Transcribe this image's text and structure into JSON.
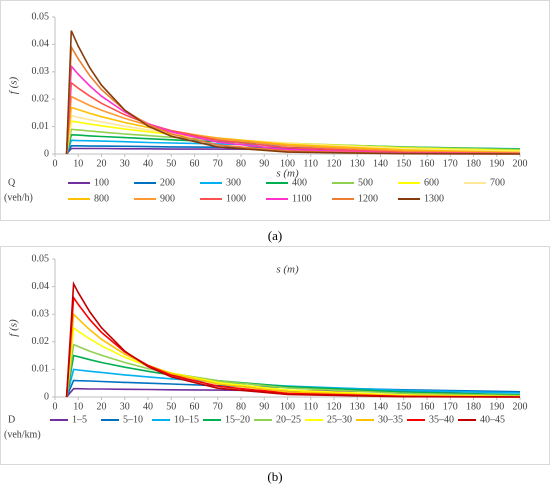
{
  "chart_data": [
    {
      "type": "line",
      "xlabel": "s (m)",
      "ylabel": "f (s)",
      "legend_title": "Q",
      "legend_subtitle": "(veh/h)",
      "caption": "(a)",
      "xlim": [
        0,
        200
      ],
      "xticks": [
        0,
        10,
        20,
        30,
        40,
        50,
        60,
        70,
        80,
        90,
        100,
        110,
        120,
        130,
        140,
        150,
        160,
        170,
        180,
        190,
        200
      ],
      "ylim": [
        0,
        0.05
      ],
      "yticks": [
        0,
        0.01,
        0.02,
        0.03,
        0.04,
        0.05
      ],
      "x": [
        5,
        7,
        10,
        15,
        20,
        30,
        40,
        50,
        70,
        100,
        150,
        200
      ],
      "series": [
        {
          "name": "100",
          "color": "#7030a0",
          "values": [
            0,
            0.002,
            0.002,
            0.002,
            0.002,
            0.0019,
            0.0019,
            0.0018,
            0.0018,
            0.0017,
            0.0016,
            0.0015
          ]
        },
        {
          "name": "200",
          "color": "#0070c0",
          "values": [
            0,
            0.003,
            0.003,
            0.0029,
            0.0029,
            0.0028,
            0.0027,
            0.0026,
            0.0025,
            0.0023,
            0.002,
            0.0017
          ]
        },
        {
          "name": "300",
          "color": "#00b0f0",
          "values": [
            0,
            0.005,
            0.0049,
            0.0048,
            0.0047,
            0.0045,
            0.0042,
            0.004,
            0.0037,
            0.0031,
            0.0024,
            0.0019
          ]
        },
        {
          "name": "400",
          "color": "#00b050",
          "values": [
            0,
            0.007,
            0.0069,
            0.0066,
            0.0064,
            0.006,
            0.0056,
            0.0052,
            0.0045,
            0.0037,
            0.0026,
            0.0018
          ]
        },
        {
          "name": "500",
          "color": "#92d050",
          "values": [
            0,
            0.009,
            0.0088,
            0.0084,
            0.008,
            0.0073,
            0.0067,
            0.0061,
            0.0051,
            0.0039,
            0.0025,
            0.0016
          ]
        },
        {
          "name": "600",
          "color": "#ffff00",
          "values": [
            0,
            0.012,
            0.0116,
            0.0109,
            0.0103,
            0.0091,
            0.0081,
            0.0072,
            0.0056,
            0.0039,
            0.0022,
            0.0012
          ]
        },
        {
          "name": "700",
          "color": "#ffe699",
          "values": [
            0,
            0.014,
            0.0134,
            0.0125,
            0.0117,
            0.0101,
            0.0088,
            0.0077,
            0.0058,
            0.0038,
            0.0019,
            0.0009
          ]
        },
        {
          "name": "800",
          "color": "#ffc000",
          "values": [
            0,
            0.017,
            0.0162,
            0.0148,
            0.0136,
            0.0115,
            0.0097,
            0.0082,
            0.0058,
            0.0035,
            0.0015,
            0.0006
          ]
        },
        {
          "name": "900",
          "color": "#ff9933",
          "values": [
            0,
            0.021,
            0.0197,
            0.0177,
            0.016,
            0.013,
            0.0105,
            0.0085,
            0.0056,
            0.003,
            0.001,
            0.0004
          ]
        },
        {
          "name": "1000",
          "color": "#ff5050",
          "values": [
            0,
            0.026,
            0.024,
            0.0211,
            0.0185,
            0.0143,
            0.011,
            0.0085,
            0.005,
            0.0023,
            0.0006,
            0.0002
          ]
        },
        {
          "name": "1100",
          "color": "#ff33cc",
          "values": [
            0,
            0.032,
            0.0291,
            0.0248,
            0.0211,
            0.0153,
            0.0111,
            0.0081,
            0.0043,
            0.0016,
            0.0003,
            0.0001
          ]
        },
        {
          "name": "1200",
          "color": "#ed7d31",
          "values": [
            0,
            0.039,
            0.0347,
            0.0285,
            0.0235,
            0.0159,
            0.0108,
            0.0073,
            0.0033,
            0.0011,
            0.0001,
            0
          ]
        },
        {
          "name": "1300",
          "color": "#843c0c",
          "values": [
            0,
            0.045,
            0.0393,
            0.0314,
            0.0251,
            0.016,
            0.0102,
            0.0065,
            0.0026,
            0.0007,
            0.0001,
            0
          ]
        }
      ]
    },
    {
      "type": "line",
      "xlabel": "s (m)",
      "ylabel": "f (s)",
      "legend_title": "D",
      "legend_subtitle": "(veh/km)",
      "caption": "(b)",
      "xlim": [
        0,
        200
      ],
      "xticks": [
        0,
        10,
        20,
        30,
        40,
        50,
        60,
        70,
        80,
        90,
        100,
        110,
        120,
        130,
        140,
        150,
        160,
        170,
        180,
        190,
        200
      ],
      "ylim": [
        0,
        0.05
      ],
      "yticks": [
        0,
        0.01,
        0.02,
        0.03,
        0.04,
        0.05
      ],
      "x": [
        5,
        8,
        10,
        15,
        20,
        30,
        40,
        50,
        70,
        100,
        150,
        200
      ],
      "series": [
        {
          "name": "1–5",
          "color": "#7030a0",
          "values": [
            0,
            0.003,
            0.003,
            0.0029,
            0.0029,
            0.0028,
            0.0027,
            0.0026,
            0.0025,
            0.0023,
            0.002,
            0.0017
          ]
        },
        {
          "name": "5–10",
          "color": "#0070c0",
          "values": [
            0,
            0.006,
            0.0059,
            0.0058,
            0.0056,
            0.0053,
            0.005,
            0.0047,
            0.0041,
            0.0035,
            0.0026,
            0.0019
          ]
        },
        {
          "name": "10–15",
          "color": "#00b0f0",
          "values": [
            0,
            0.01,
            0.0098,
            0.0093,
            0.0089,
            0.008,
            0.0073,
            0.0066,
            0.0054,
            0.004,
            0.0024,
            0.0015
          ]
        },
        {
          "name": "15–20",
          "color": "#00b050",
          "values": [
            0,
            0.015,
            0.0146,
            0.0135,
            0.0125,
            0.0108,
            0.0093,
            0.008,
            0.0059,
            0.0038,
            0.0018,
            0.0008
          ]
        },
        {
          "name": "20–25",
          "color": "#92d050",
          "values": [
            0,
            0.019,
            0.0183,
            0.0166,
            0.0151,
            0.0125,
            0.0103,
            0.0086,
            0.0059,
            0.0033,
            0.0013,
            0.0005
          ]
        },
        {
          "name": "25–30",
          "color": "#ffff00",
          "values": [
            0,
            0.025,
            0.0238,
            0.021,
            0.0185,
            0.0144,
            0.0112,
            0.0087,
            0.0053,
            0.0025,
            0.0007,
            0.0002
          ]
        },
        {
          "name": "30–35",
          "color": "#ffc000",
          "values": [
            0,
            0.03,
            0.0283,
            0.0243,
            0.0209,
            0.0155,
            0.0115,
            0.0085,
            0.0047,
            0.0019,
            0.0004,
            0.0001
          ]
        },
        {
          "name": "35–40",
          "color": "#ff0000",
          "values": [
            0,
            0.036,
            0.0335,
            0.028,
            0.0234,
            0.0163,
            0.0114,
            0.0079,
            0.0039,
            0.0013,
            0.0002,
            0
          ]
        },
        {
          "name": "40–45",
          "color": "#c00000",
          "values": [
            0,
            0.041,
            0.0378,
            0.0308,
            0.0251,
            0.0166,
            0.011,
            0.0073,
            0.0032,
            0.0009,
            0.0001,
            0
          ]
        }
      ]
    }
  ]
}
